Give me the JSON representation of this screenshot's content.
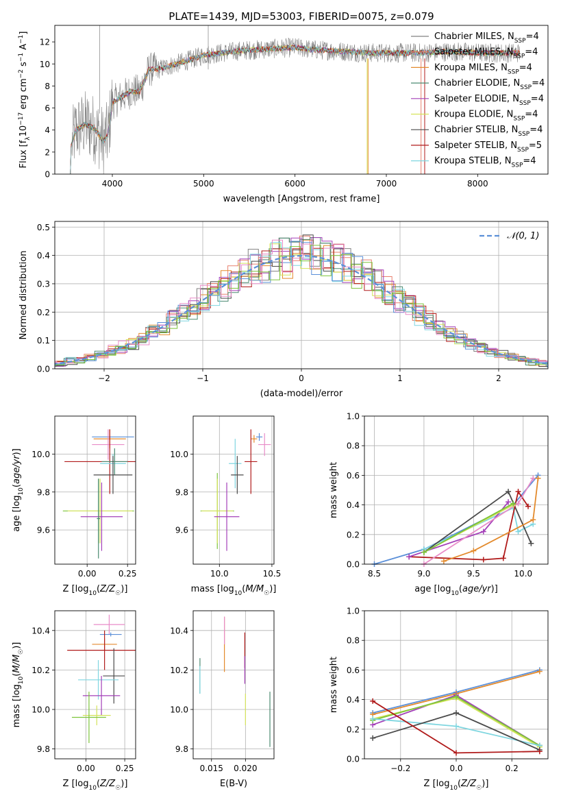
{
  "title": "PLATE=1439, MJD=53003, FIBERID=0075, z=0.079",
  "colors": {
    "grey": "#808080",
    "salmon": "#e8806e",
    "orange": "#e38a2c",
    "teal": "#4a8a70",
    "purple": "#a33fb8",
    "yellow": "#d4e35a",
    "darkgrey": "#4a4a4a",
    "crimson": "#b01a1a",
    "cyan": "#7fd6e0",
    "blue": "#5a8fd8",
    "pink": "#e88cc8",
    "green": "#7cc43a"
  },
  "chart_data": [
    {
      "type": "line",
      "id": "spectrum",
      "xlabel": "wavelength [Angstrom, rest frame]",
      "ylabel": "Flux [f_λ10^-17 erg cm^-2 s^-1 A^-1]",
      "xlim": [
        3370,
        8770
      ],
      "ylim": [
        0,
        13.5
      ],
      "xticks": [
        4000,
        5000,
        6000,
        7000,
        8000
      ],
      "yticks": [
        0,
        2,
        4,
        6,
        8,
        10,
        12
      ],
      "grid": false,
      "legend_position": "right",
      "observed_color": "grey",
      "model_envelope": {
        "x": [
          3550,
          3600,
          3700,
          3800,
          3900,
          3950,
          4000,
          4100,
          4200,
          4300,
          4400,
          4500,
          4700,
          4900,
          5000,
          5200,
          5400,
          5600,
          5800,
          6000,
          6200,
          6400,
          6600,
          6800,
          7000,
          7200,
          7400,
          7600,
          7800,
          8000,
          8200,
          8400,
          8500
        ],
        "y": [
          2.5,
          4.0,
          4.5,
          4.2,
          3.0,
          3.5,
          6.5,
          7.0,
          7.5,
          7.5,
          9.5,
          9.5,
          10.0,
          10.5,
          10.8,
          11.0,
          11.2,
          11.3,
          11.4,
          11.5,
          11.3,
          11.2,
          11.1,
          11.0,
          11.0,
          11.0,
          11.0,
          11.1,
          11.1,
          11.0,
          11.0,
          11.0,
          11.0
        ]
      },
      "series": [
        {
          "name": "Chabrier MILES, N_SSP=4",
          "color": "grey"
        },
        {
          "name": "Salpeter MILES, N_SSP=4",
          "color": "salmon"
        },
        {
          "name": "Kroupa MILES, N_SSP=4",
          "color": "orange"
        },
        {
          "name": "Chabrier ELODIE, N_SSP=4",
          "color": "teal"
        },
        {
          "name": "Salpeter ELODIE, N_SSP=4",
          "color": "purple"
        },
        {
          "name": "Kroupa ELODIE, N_SSP=4",
          "color": "yellow"
        },
        {
          "name": "Chabrier STELIB, N_SSP=4",
          "color": "darkgrey"
        },
        {
          "name": "Salpeter STELIB, N_SSP=5",
          "color": "crimson"
        },
        {
          "name": "Kroupa STELIB, N_SSP=4",
          "color": "cyan"
        }
      ]
    },
    {
      "type": "line",
      "id": "residuals",
      "xlabel": "(data-model)/error",
      "ylabel": "Normed distribution",
      "xlim": [
        -2.5,
        2.5
      ],
      "ylim": [
        0,
        0.52
      ],
      "xticks": [
        -2,
        -1,
        0,
        1,
        2
      ],
      "yticks": [
        0.0,
        0.1,
        0.2,
        0.3,
        0.4,
        0.5
      ],
      "grid": true,
      "legend_position": "top-right",
      "gaussian": {
        "name": "𝒩(0, 1)",
        "color": "blue"
      },
      "histogram_bins": 50,
      "histogram_colors": [
        "grey",
        "salmon",
        "orange",
        "teal",
        "purple",
        "yellow",
        "darkgrey",
        "crimson",
        "cyan",
        "blue",
        "pink",
        "green"
      ]
    },
    {
      "type": "scatter",
      "id": "age_vs_Z",
      "xlabel": "Z [log10(Z/Z☉)]",
      "ylabel": "age [log10(age/yr)]",
      "xlim": [
        -0.2,
        0.3
      ],
      "ylim": [
        9.42,
        10.2
      ],
      "xticks": [
        0.0,
        0.25
      ],
      "yticks": [
        9.6,
        9.8,
        10.0
      ],
      "grid": true,
      "points": [
        {
          "x": 0.16,
          "y": 10.09,
          "xerr": 0.13,
          "yerr": 0.0,
          "color": "blue"
        },
        {
          "x": 0.14,
          "y": 10.08,
          "xerr": 0.1,
          "yerr": 0.05,
          "color": "orange"
        },
        {
          "x": 0.13,
          "y": 10.05,
          "xerr": 0.1,
          "yerr": 0.08,
          "color": "pink"
        },
        {
          "x": 0.14,
          "y": 9.96,
          "xerr": 0.28,
          "yerr": 0.17,
          "color": "crimson"
        },
        {
          "x": 0.16,
          "y": 9.95,
          "xerr": 0.08,
          "yerr": 0.05,
          "color": "cyan"
        },
        {
          "x": 0.17,
          "y": 9.96,
          "xerr": 0.08,
          "yerr": 0.07,
          "color": "teal"
        },
        {
          "x": 0.16,
          "y": 9.89,
          "xerr": 0.12,
          "yerr": 0.1,
          "color": "darkgrey"
        },
        {
          "x": 0.07,
          "y": 9.7,
          "xerr": 0.22,
          "yerr": 0.17,
          "color": "green"
        },
        {
          "x": 0.08,
          "y": 9.7,
          "xerr": 0.2,
          "yerr": 0.17,
          "color": "yellow"
        },
        {
          "x": 0.09,
          "y": 9.67,
          "xerr": 0.13,
          "yerr": 0.18,
          "color": "purple"
        },
        {
          "x": 0.07,
          "y": 9.66,
          "xerr": 0.01,
          "yerr": 0.21,
          "color": "teal"
        }
      ]
    },
    {
      "type": "scatter",
      "id": "age_vs_mass",
      "xlabel": "mass [log10(M/M☉)]",
      "ylabel": "",
      "xlim": [
        9.75,
        10.52
      ],
      "ylim": [
        9.42,
        10.2
      ],
      "xticks": [
        10.0,
        10.5
      ],
      "yticks": [
        9.6,
        9.8,
        10.0
      ],
      "grid": true,
      "points": [
        {
          "x": 10.38,
          "y": 10.09,
          "xerr": 0.03,
          "yerr": 0.02,
          "color": "blue"
        },
        {
          "x": 10.33,
          "y": 10.08,
          "xerr": 0.03,
          "yerr": 0.02,
          "color": "orange"
        },
        {
          "x": 10.43,
          "y": 10.05,
          "xerr": 0.06,
          "yerr": 0.06,
          "color": "pink"
        },
        {
          "x": 10.3,
          "y": 9.96,
          "xerr": 0.06,
          "yerr": 0.17,
          "color": "crimson"
        },
        {
          "x": 10.15,
          "y": 9.95,
          "xerr": 0.06,
          "yerr": 0.13,
          "color": "cyan"
        },
        {
          "x": 10.17,
          "y": 9.89,
          "xerr": 0.06,
          "yerr": 0.1,
          "color": "darkgrey"
        },
        {
          "x": 9.98,
          "y": 9.7,
          "xerr": 0.16,
          "yerr": 0.2,
          "color": "green"
        },
        {
          "x": 9.98,
          "y": 9.7,
          "xerr": 0.15,
          "yerr": 0.17,
          "color": "yellow"
        },
        {
          "x": 10.07,
          "y": 9.67,
          "xerr": 0.12,
          "yerr": 0.18,
          "color": "purple"
        }
      ]
    },
    {
      "type": "line",
      "id": "massweight_vs_age",
      "xlabel": "age [log10(age/yr)]",
      "ylabel": "mass weight",
      "xlim": [
        8.4,
        10.25
      ],
      "ylim": [
        0,
        1
      ],
      "xticks": [
        8.5,
        9.0,
        9.5,
        10.0
      ],
      "yticks": [
        0.0,
        0.2,
        0.4,
        0.6,
        0.8,
        1.0
      ],
      "grid": true,
      "series": [
        {
          "color": "blue",
          "x": [
            8.5,
            9.0,
            9.9,
            10.15
          ],
          "y": [
            0.0,
            0.1,
            0.4,
            0.6
          ]
        },
        {
          "color": "cyan",
          "x": [
            9.0,
            9.9,
            9.95,
            10.1
          ],
          "y": [
            0.1,
            0.38,
            0.22,
            0.27
          ]
        },
        {
          "color": "darkgrey",
          "x": [
            9.0,
            9.85,
            10.08
          ],
          "y": [
            0.08,
            0.49,
            0.14
          ]
        },
        {
          "color": "crimson",
          "x": [
            8.85,
            9.6,
            9.8,
            9.95,
            10.05
          ],
          "y": [
            0.05,
            0.03,
            0.04,
            0.49,
            0.39
          ]
        },
        {
          "color": "purple",
          "x": [
            8.85,
            9.6,
            9.85
          ],
          "y": [
            0.05,
            0.22,
            0.42
          ]
        },
        {
          "color": "pink",
          "x": [
            9.0,
            9.95,
            10.1
          ],
          "y": [
            0.0,
            0.41,
            0.58
          ]
        },
        {
          "color": "yellow",
          "x": [
            9.0,
            9.9
          ],
          "y": [
            0.08,
            0.4
          ]
        },
        {
          "color": "green",
          "x": [
            9.0,
            9.9
          ],
          "y": [
            0.08,
            0.41
          ]
        },
        {
          "color": "orange",
          "x": [
            9.2,
            9.5,
            10.1,
            10.15
          ],
          "y": [
            0.02,
            0.09,
            0.3,
            0.58
          ]
        }
      ]
    },
    {
      "type": "scatter",
      "id": "mass_vs_Z",
      "xlabel": "Z [log10(Z/Z☉)]",
      "ylabel": "mass [log10(M/M☉)]",
      "xlim": [
        -0.2,
        0.32
      ],
      "ylim": [
        9.75,
        10.5
      ],
      "xticks": [
        0.0,
        0.25
      ],
      "yticks": [
        9.8,
        10.0,
        10.2,
        10.4
      ],
      "grid": true,
      "points": [
        {
          "x": 0.15,
          "y": 10.43,
          "xerr": 0.1,
          "yerr": 0.05,
          "color": "pink"
        },
        {
          "x": 0.16,
          "y": 10.38,
          "xerr": 0.07,
          "yerr": 0.01,
          "color": "blue"
        },
        {
          "x": 0.12,
          "y": 10.33,
          "xerr": 0.08,
          "yerr": 0.03,
          "color": "orange"
        },
        {
          "x": 0.12,
          "y": 10.3,
          "xerr": 0.24,
          "yerr": 0.1,
          "color": "crimson"
        },
        {
          "x": 0.18,
          "y": 10.17,
          "xerr": 0.07,
          "yerr": 0.14,
          "color": "darkgrey"
        },
        {
          "x": 0.08,
          "y": 10.15,
          "xerr": 0.13,
          "yerr": 0.1,
          "color": "cyan"
        },
        {
          "x": 0.1,
          "y": 10.07,
          "xerr": 0.12,
          "yerr": 0.1,
          "color": "purple"
        },
        {
          "x": 0.07,
          "y": 9.97,
          "xerr": 0.09,
          "yerr": 0.05,
          "color": "yellow"
        },
        {
          "x": 0.02,
          "y": 9.96,
          "xerr": 0.11,
          "yerr": 0.13,
          "color": "green"
        }
      ]
    },
    {
      "type": "scatter",
      "id": "mass_vs_ebv",
      "xlabel": "E(B-V)",
      "ylabel": "",
      "xlim": [
        0.0123,
        0.0242
      ],
      "ylim": [
        9.75,
        10.5
      ],
      "xticks": [
        0.015,
        0.02
      ],
      "yticks": [
        9.8,
        10.0,
        10.2,
        10.4
      ],
      "grid": true,
      "points": [
        {
          "x": 0.0133,
          "y": 10.17,
          "xerr": 0.0,
          "yerr": 0.09,
          "color": "teal"
        },
        {
          "x": 0.0133,
          "y": 10.15,
          "xerr": 0.0,
          "yerr": 0.07,
          "color": "cyan"
        },
        {
          "x": 0.0169,
          "y": 10.33,
          "xerr": 0.0,
          "yerr": 0.14,
          "color": "orange"
        },
        {
          "x": 0.0169,
          "y": 10.4,
          "xerr": 0.0,
          "yerr": 0.07,
          "color": "pink"
        },
        {
          "x": 0.0199,
          "y": 10.3,
          "xerr": 0.0,
          "yerr": 0.09,
          "color": "crimson"
        },
        {
          "x": 0.0199,
          "y": 10.2,
          "xerr": 0.0,
          "yerr": 0.07,
          "color": "purple"
        },
        {
          "x": 0.02,
          "y": 10.0,
          "xerr": 0.0,
          "yerr": 0.08,
          "color": "yellow"
        },
        {
          "x": 0.0236,
          "y": 9.95,
          "xerr": 0.0,
          "yerr": 0.14,
          "color": "teal"
        }
      ]
    },
    {
      "type": "line",
      "id": "massweight_vs_Z",
      "xlabel": "Z [log10(Z/Z☉)]",
      "ylabel": "mass weight",
      "xlim": [
        -0.33,
        0.33
      ],
      "ylim": [
        0,
        1
      ],
      "xticks": [
        -0.2,
        0.0,
        0.2
      ],
      "yticks": [
        0.0,
        0.2,
        0.4,
        0.6,
        0.8,
        1.0
      ],
      "grid": true,
      "series": [
        {
          "color": "blue",
          "x": [
            -0.3,
            0.0,
            0.3
          ],
          "y": [
            0.31,
            0.45,
            0.6
          ]
        },
        {
          "color": "orange",
          "x": [
            -0.3,
            0.0,
            0.3
          ],
          "y": [
            0.3,
            0.44,
            0.59
          ]
        },
        {
          "color": "purple",
          "x": [
            -0.3,
            0.0,
            0.3
          ],
          "y": [
            0.23,
            0.43,
            0.09
          ]
        },
        {
          "color": "yellow",
          "x": [
            -0.3,
            0.0,
            0.3
          ],
          "y": [
            0.27,
            0.41,
            0.08
          ]
        },
        {
          "color": "green",
          "x": [
            -0.3,
            0.0,
            0.3
          ],
          "y": [
            0.26,
            0.42,
            0.09
          ]
        },
        {
          "color": "cyan",
          "x": [
            -0.3,
            0.0,
            0.3
          ],
          "y": [
            0.27,
            0.22,
            0.09
          ]
        },
        {
          "color": "darkgrey",
          "x": [
            -0.3,
            0.0,
            0.3
          ],
          "y": [
            0.14,
            0.31,
            0.06
          ]
        },
        {
          "color": "crimson",
          "x": [
            -0.3,
            0.0,
            0.3
          ],
          "y": [
            0.39,
            0.04,
            0.05
          ]
        }
      ]
    }
  ]
}
